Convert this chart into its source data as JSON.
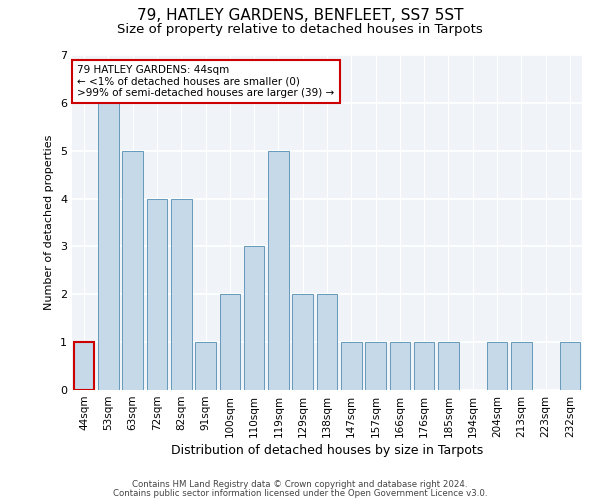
{
  "title1": "79, HATLEY GARDENS, BENFLEET, SS7 5ST",
  "title2": "Size of property relative to detached houses in Tarpots",
  "xlabel": "Distribution of detached houses by size in Tarpots",
  "ylabel": "Number of detached properties",
  "categories": [
    "44sqm",
    "53sqm",
    "63sqm",
    "72sqm",
    "82sqm",
    "91sqm",
    "100sqm",
    "110sqm",
    "119sqm",
    "129sqm",
    "138sqm",
    "147sqm",
    "157sqm",
    "166sqm",
    "176sqm",
    "185sqm",
    "194sqm",
    "204sqm",
    "213sqm",
    "223sqm",
    "232sqm"
  ],
  "values": [
    1,
    6,
    5,
    4,
    4,
    1,
    2,
    3,
    5,
    2,
    2,
    1,
    1,
    1,
    1,
    1,
    0,
    1,
    1,
    0,
    1
  ],
  "highlight_index": 0,
  "bar_color": "#c6d9e8",
  "bar_edge_color": "#6699bb",
  "highlight_bar_edge_color": "#cc0000",
  "annotation_box_color": "#ffffff",
  "annotation_box_edge_color": "#cc0000",
  "annotation_line1": "79 HATLEY GARDENS: 44sqm",
  "annotation_line2": "← <1% of detached houses are smaller (0)",
  "annotation_line3": ">99% of semi-detached houses are larger (39) →",
  "footer1": "Contains HM Land Registry data © Crown copyright and database right 2024.",
  "footer2": "Contains public sector information licensed under the Open Government Licence v3.0.",
  "ylim": [
    0,
    7
  ],
  "yticks": [
    0,
    1,
    2,
    3,
    4,
    5,
    6,
    7
  ],
  "background_color": "#ffffff",
  "plot_background_color": "#f0f4f8",
  "grid_color": "#ffffff",
  "title_fontsize": 11,
  "subtitle_fontsize": 9.5,
  "tick_fontsize": 7.5,
  "ylabel_fontsize": 8,
  "xlabel_fontsize": 9
}
